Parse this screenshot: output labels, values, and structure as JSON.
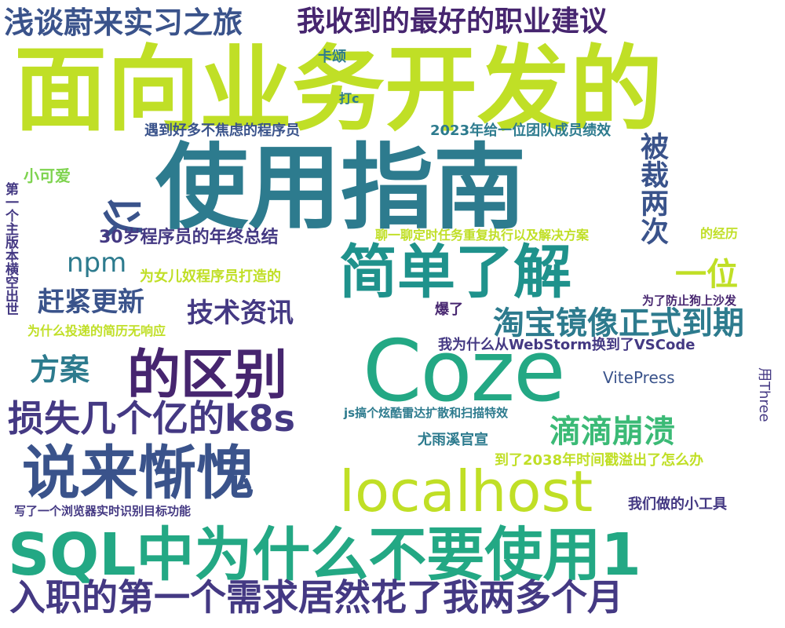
{
  "palette": {
    "yellow_green": "#c0df26",
    "light_green": "#7ed34f",
    "green": "#3bba76",
    "teal": "#23a884",
    "teal_blue": "#1f928c",
    "blue": "#2d7b8e",
    "indigo": "#3a538b",
    "purple": "#443983",
    "dark_purple": "#46256f",
    "yellow": "#d8e219"
  },
  "words": [
    {
      "key": "w01",
      "text": "面向业务开发的"
    },
    {
      "key": "w02",
      "text": "使用指南"
    },
    {
      "key": "w03",
      "text": "Coze"
    },
    {
      "key": "w04",
      "text": "SQL中为什么不要使用1"
    },
    {
      "key": "w05",
      "text": "localhost"
    },
    {
      "key": "w06",
      "text": "说来惭愧"
    },
    {
      "key": "w07",
      "text": "简单了解"
    },
    {
      "key": "w08",
      "text": "的区别"
    },
    {
      "key": "w09",
      "text": "损失几个亿的k8s"
    },
    {
      "key": "w10",
      "text": "入职的第一个需求居然花了我两多个月"
    },
    {
      "key": "w11",
      "text": "浅谈蔚来实习之旅"
    },
    {
      "key": "w12",
      "text": "我收到的最好的职业建议"
    },
    {
      "key": "w13",
      "text": "淘宝镜像正式到期"
    },
    {
      "key": "w14",
      "text": "滴滴崩溃"
    },
    {
      "key": "w15",
      "text": "npm"
    },
    {
      "key": "w16",
      "text": "赶紧更新"
    },
    {
      "key": "w17",
      "text": "技术资讯"
    },
    {
      "key": "w18",
      "text": "方案"
    },
    {
      "key": "w19",
      "text": "一位"
    },
    {
      "key": "w20",
      "text": "被裁两次"
    },
    {
      "key": "w21",
      "text": "小可爱"
    },
    {
      "key": "w22",
      "text": "卡颂"
    },
    {
      "key": "w23",
      "text": "打c"
    },
    {
      "key": "w24",
      "text": "遇到好多不焦虑的程序员"
    },
    {
      "key": "w25",
      "text": "2023年给一位团队成员绩效"
    },
    {
      "key": "w26",
      "text": "30岁程序员的年终总结"
    },
    {
      "key": "w27",
      "text": "聊一聊定时任务重复执行以及解决方案"
    },
    {
      "key": "w28",
      "text": "的经历"
    },
    {
      "key": "w29",
      "text": "为女儿奴程序员打造的"
    },
    {
      "key": "w30",
      "text": "为了防止狗上沙发"
    },
    {
      "key": "w31",
      "text": "爆了"
    },
    {
      "key": "w32",
      "text": "为什么投递的简历无响应"
    },
    {
      "key": "w33",
      "text": "我为什么从WebStorm换到了VSCode"
    },
    {
      "key": "w34",
      "text": "VitePress"
    },
    {
      "key": "w35",
      "text": "js搞个炫酷雷达扩散和扫描特效"
    },
    {
      "key": "w36",
      "text": "尤雨溪官宣"
    },
    {
      "key": "w37",
      "text": "到了2038年时间戳溢出了怎么办"
    },
    {
      "key": "w38",
      "text": "我们做的小工具"
    },
    {
      "key": "w39",
      "text": "写了一个浏览器实时识别目标功能"
    },
    {
      "key": "w40",
      "text": "用Three"
    },
    {
      "key": "w41",
      "text": "第一个主版本横空出世"
    },
    {
      "key": "w42",
      "text": "以"
    }
  ]
}
